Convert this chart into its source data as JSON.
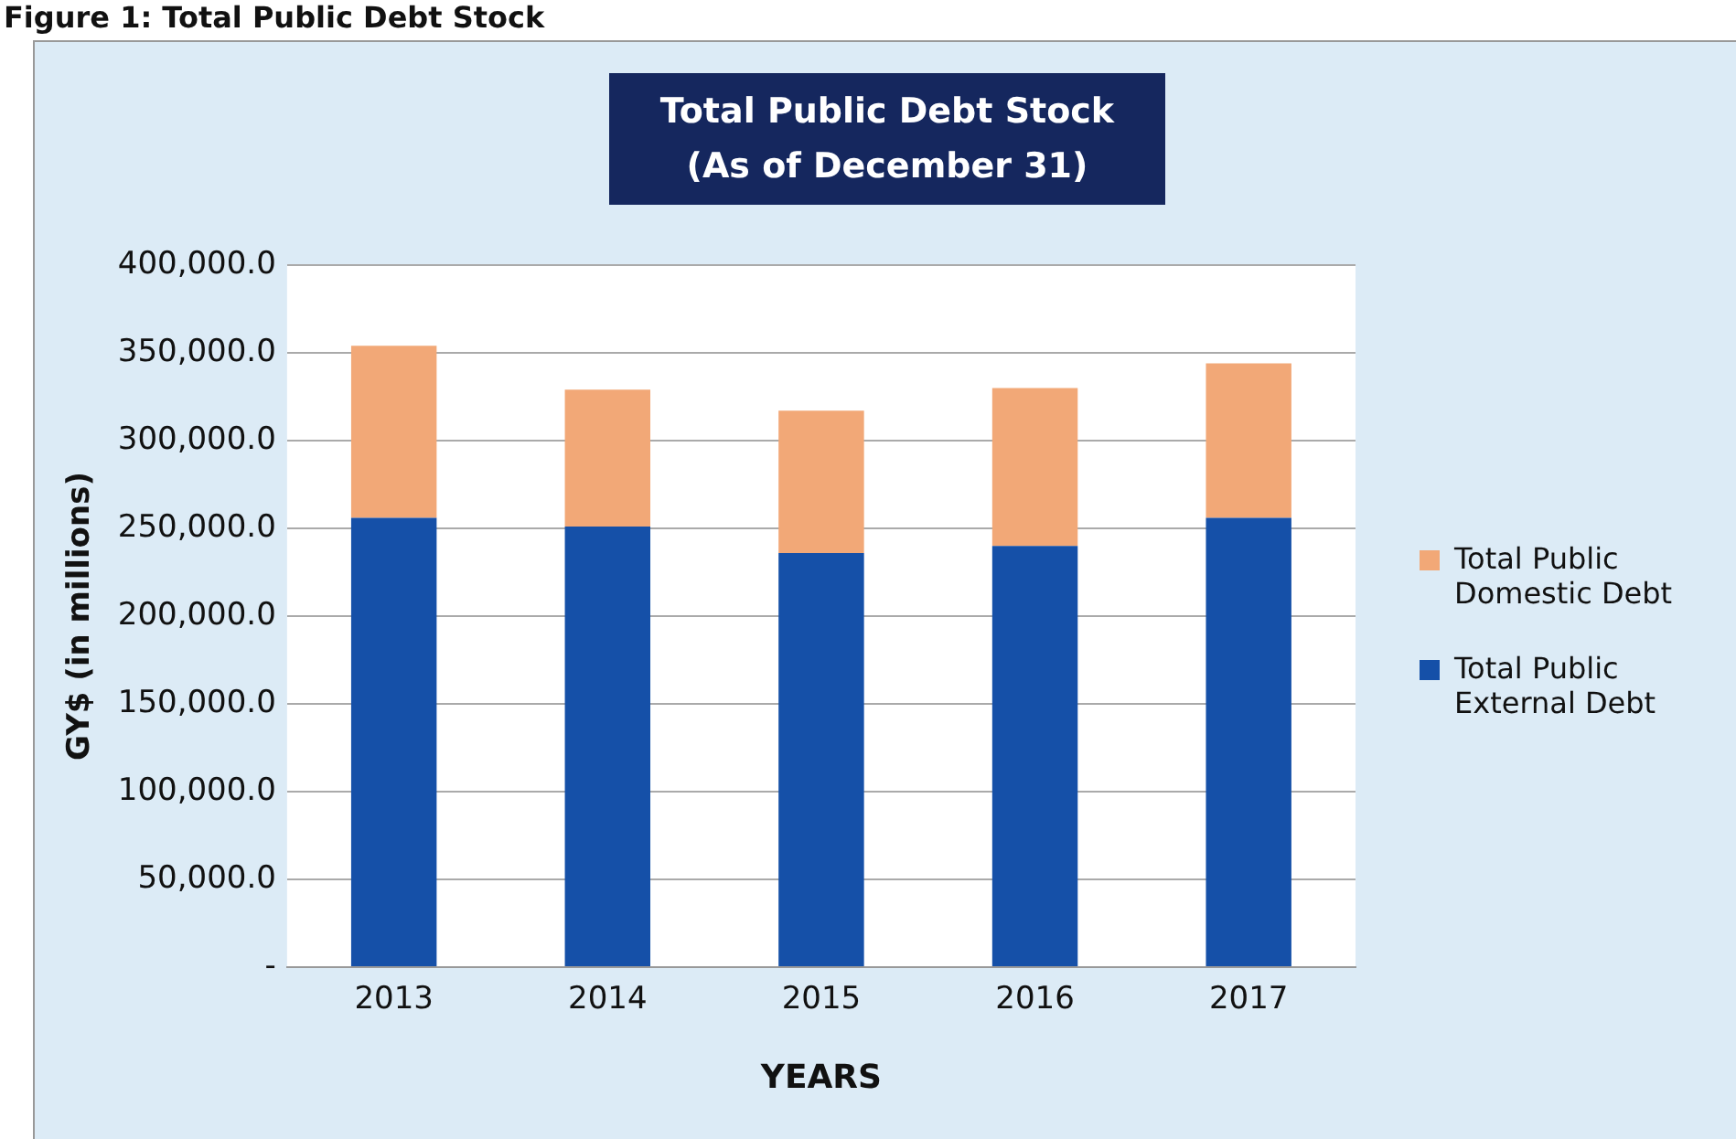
{
  "chart_data": {
    "type": "bar",
    "title": "Total Public Debt Stock\n(As of December 31)",
    "xlabel": "YEARS",
    "ylabel": "GY$ (in millions)",
    "annotations": [
      "Figure 1: Total Public Debt Stock"
    ],
    "categories": [
      "2013",
      "2014",
      "2015",
      "2016",
      "2017"
    ],
    "stacked": true,
    "series": [
      {
        "name": "Total Public External Debt",
        "color": "#1550a8",
        "values": [
          256000,
          251000,
          236000,
          240000,
          256000
        ]
      },
      {
        "name": "Total Public Domestic Debt",
        "color": "#f2a877",
        "values": [
          98000,
          78000,
          81000,
          90000,
          88000
        ]
      }
    ],
    "ylim": [
      0,
      400000
    ],
    "yticks": [
      {
        "value": 0,
        "label": "-"
      },
      {
        "value": 50000,
        "label": "50,000.0"
      },
      {
        "value": 100000,
        "label": "100,000.0"
      },
      {
        "value": 150000,
        "label": "150,000.0"
      },
      {
        "value": 200000,
        "label": "200,000.0"
      },
      {
        "value": 250000,
        "label": "250,000.0"
      },
      {
        "value": 300000,
        "label": "300,000.0"
      },
      {
        "value": 350000,
        "label": "350,000.0"
      },
      {
        "value": 400000,
        "label": "400,000.0"
      }
    ],
    "grid": "y",
    "legend": "right"
  }
}
